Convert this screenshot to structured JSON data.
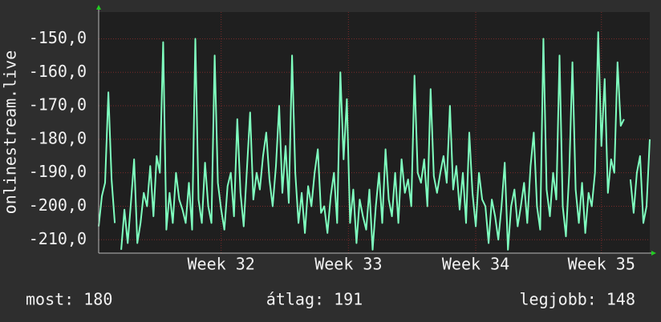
{
  "chart_data": {
    "type": "line",
    "y_label": "onlinestream.live",
    "ylim": [
      -214,
      -142
    ],
    "yticks": [
      {
        "value": -150,
        "label": "-150,0"
      },
      {
        "value": -160,
        "label": "-160,0"
      },
      {
        "value": -170,
        "label": "-170,0"
      },
      {
        "value": -180,
        "label": "-180,0"
      },
      {
        "value": -190,
        "label": "-190,0"
      },
      {
        "value": -200,
        "label": "-200,0"
      },
      {
        "value": -210,
        "label": "-210,0"
      }
    ],
    "xlim": [
      0,
      171
    ],
    "xticks": [
      {
        "value": 38,
        "label": "Week 32"
      },
      {
        "value": 77.5,
        "label": "Week 33"
      },
      {
        "value": 117,
        "label": "Week 34"
      },
      {
        "value": 156,
        "label": "Week 35"
      }
    ],
    "grid": true,
    "series": [
      {
        "name": "onlinestream.live",
        "color": "#7fffbf",
        "values": [
          -206,
          -197,
          -193,
          -166,
          -192,
          -205,
          null,
          -213,
          -201,
          -211,
          -199,
          -186,
          -211,
          -205,
          -196,
          -200,
          -188,
          -203,
          -185,
          -190,
          -151,
          -207,
          -196,
          -205,
          -190,
          -198,
          -201,
          -205,
          -193,
          -207,
          -150,
          -198,
          -205,
          -187,
          -200,
          -205,
          -155,
          -193,
          -201,
          -207,
          -194,
          -190,
          -203,
          -174,
          -196,
          -206,
          -189,
          -172,
          -198,
          -190,
          -195,
          -185,
          -178,
          -192,
          -200,
          -188,
          -170,
          -196,
          -182,
          -199,
          -155,
          -190,
          -205,
          -196,
          -208,
          -194,
          -200,
          -190,
          -183,
          -202,
          -200,
          -208,
          -197,
          -190,
          -205,
          -160,
          -186,
          -168,
          -205,
          -195,
          -211,
          -198,
          -203,
          -207,
          -195,
          -213,
          -200,
          -190,
          -205,
          -183,
          -198,
          -203,
          -190,
          -205,
          -186,
          -196,
          -192,
          -200,
          -161,
          -190,
          -193,
          -186,
          -200,
          -165,
          -191,
          -196,
          -190,
          -185,
          -193,
          -170,
          -195,
          -188,
          -201,
          -190,
          -205,
          -178,
          -196,
          -206,
          -190,
          -198,
          -200,
          -211,
          -198,
          -203,
          -210,
          -200,
          -187,
          -213,
          -200,
          -195,
          -206,
          -200,
          -193,
          -205,
          -188,
          -178,
          -200,
          -207,
          -150,
          -195,
          -203,
          -190,
          -198,
          -155,
          -200,
          -209,
          -190,
          -157,
          -195,
          -205,
          -193,
          -208,
          -196,
          -200,
          -190,
          -148,
          -182,
          -162,
          -196,
          -186,
          -190,
          -157,
          -176,
          -174,
          null,
          -192,
          -202,
          -190,
          -185,
          -205,
          -200,
          -180
        ]
      }
    ],
    "footer": {
      "current": "most: 180",
      "average": "átlag: 191",
      "best": "legjobb: 148"
    }
  }
}
